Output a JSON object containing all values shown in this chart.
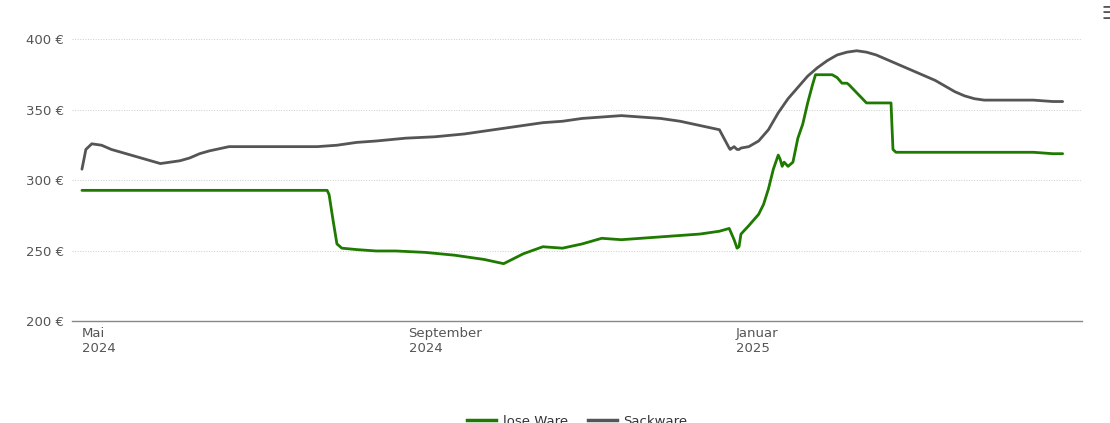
{
  "ylim": [
    200,
    410
  ],
  "yticks": [
    200,
    250,
    300,
    350,
    400
  ],
  "ytick_labels": [
    "200 €",
    "250 €",
    "300 €",
    "350 €",
    "400 €"
  ],
  "xtick_labels": [
    "Mai\n2024",
    "September\n2024",
    "Januar\n2025"
  ],
  "xtick_positions": [
    0.0,
    0.333,
    0.667
  ],
  "background_color": "#ffffff",
  "grid_color": "#cccccc",
  "line_lose_ware_color": "#1e7a00",
  "line_sackware_color": "#555555",
  "legend_labels": [
    "lose Ware",
    "Sackware"
  ],
  "lose_ware": [
    0.0,
    293,
    0.24,
    293,
    0.25,
    293,
    0.252,
    290,
    0.256,
    272,
    0.26,
    255,
    0.265,
    252,
    0.28,
    251,
    0.3,
    250,
    0.32,
    250,
    0.35,
    249,
    0.38,
    247,
    0.41,
    244,
    0.43,
    241,
    0.45,
    248,
    0.47,
    253,
    0.49,
    252,
    0.51,
    255,
    0.53,
    259,
    0.55,
    258,
    0.57,
    259,
    0.59,
    260,
    0.61,
    261,
    0.63,
    262,
    0.65,
    264,
    0.66,
    266,
    0.665,
    258,
    0.668,
    252,
    0.67,
    253,
    0.672,
    262,
    0.68,
    268,
    0.69,
    276,
    0.695,
    283,
    0.7,
    294,
    0.705,
    308,
    0.71,
    318,
    0.712,
    315,
    0.714,
    310,
    0.716,
    313,
    0.72,
    310,
    0.725,
    313,
    0.73,
    330,
    0.735,
    340,
    0.74,
    355,
    0.745,
    368,
    0.748,
    375,
    0.75,
    375,
    0.76,
    375,
    0.765,
    375,
    0.77,
    373,
    0.775,
    369,
    0.778,
    369,
    0.78,
    369,
    0.782,
    368,
    0.8,
    355,
    0.82,
    355,
    0.825,
    355,
    0.826,
    338,
    0.827,
    322,
    0.83,
    320,
    0.88,
    320,
    0.9,
    320,
    0.95,
    320,
    0.97,
    320,
    0.99,
    319,
    1.0,
    319
  ],
  "sackware": [
    0.0,
    308,
    0.004,
    322,
    0.01,
    326,
    0.02,
    325,
    0.03,
    322,
    0.04,
    320,
    0.05,
    318,
    0.06,
    316,
    0.07,
    314,
    0.08,
    312,
    0.09,
    313,
    0.1,
    314,
    0.11,
    316,
    0.12,
    319,
    0.13,
    321,
    0.15,
    324,
    0.18,
    324,
    0.21,
    324,
    0.24,
    324,
    0.26,
    325,
    0.28,
    327,
    0.3,
    328,
    0.33,
    330,
    0.36,
    331,
    0.39,
    333,
    0.41,
    335,
    0.43,
    337,
    0.45,
    339,
    0.47,
    341,
    0.49,
    342,
    0.51,
    344,
    0.53,
    345,
    0.55,
    346,
    0.57,
    345,
    0.59,
    344,
    0.61,
    342,
    0.63,
    339,
    0.65,
    336,
    0.66,
    323,
    0.661,
    322,
    0.663,
    323,
    0.665,
    324,
    0.668,
    322,
    0.67,
    322,
    0.672,
    323,
    0.68,
    324,
    0.69,
    328,
    0.7,
    336,
    0.71,
    348,
    0.72,
    358,
    0.73,
    366,
    0.74,
    374,
    0.75,
    380,
    0.76,
    385,
    0.77,
    389,
    0.78,
    391,
    0.79,
    392,
    0.8,
    391,
    0.81,
    389,
    0.82,
    386,
    0.83,
    383,
    0.84,
    380,
    0.85,
    377,
    0.86,
    374,
    0.87,
    371,
    0.88,
    367,
    0.89,
    363,
    0.9,
    360,
    0.91,
    358,
    0.92,
    357,
    0.93,
    357,
    0.94,
    357,
    0.95,
    357,
    0.97,
    357,
    0.99,
    356,
    1.0,
    356
  ]
}
